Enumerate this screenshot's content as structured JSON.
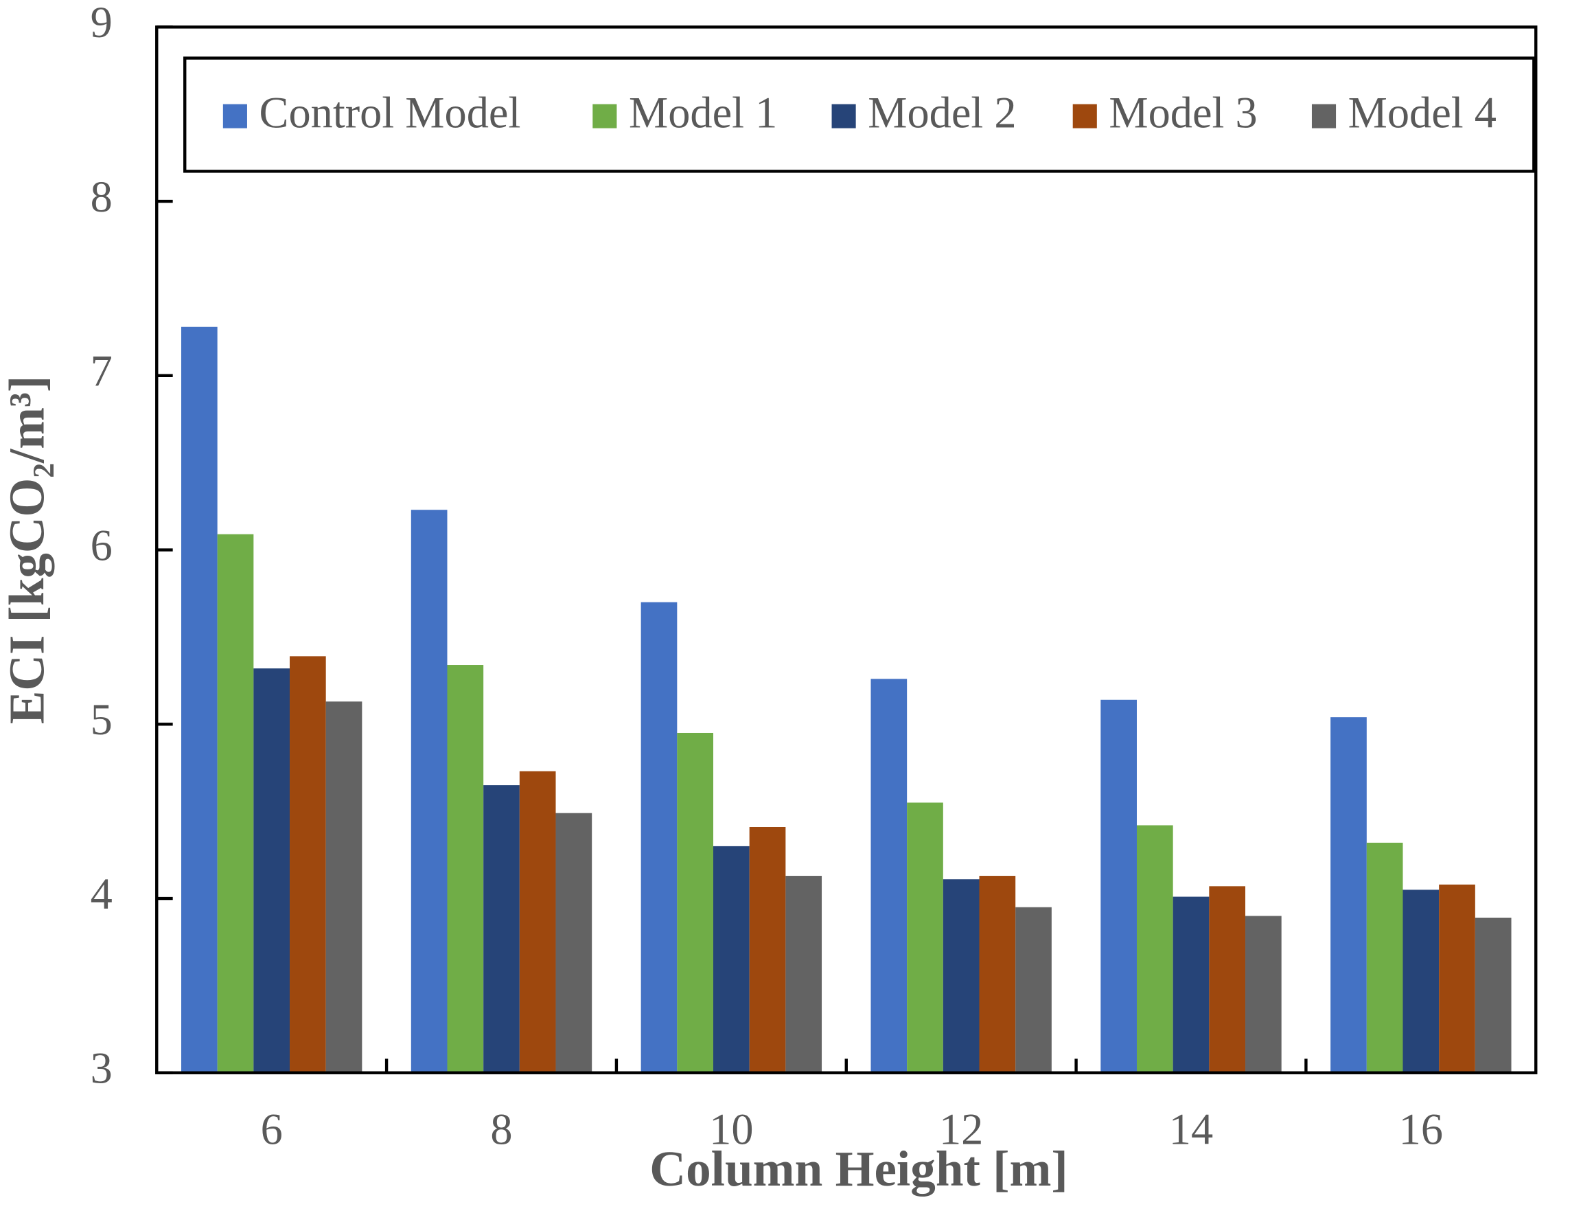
{
  "chart_data": {
    "type": "bar",
    "x_label": "Column Height [m]",
    "y_label": "ECI [kgCO₂/m³]",
    "categories": [
      "6",
      "8",
      "10",
      "12",
      "14",
      "16"
    ],
    "series": [
      {
        "name": "Control Model",
        "color": "#4472c4",
        "values": [
          7.28,
          6.23,
          5.7,
          5.26,
          5.14,
          5.04
        ]
      },
      {
        "name": "Model 1",
        "color": "#70ad47",
        "values": [
          6.09,
          5.34,
          4.95,
          4.55,
          4.42,
          4.32
        ]
      },
      {
        "name": "Model 2",
        "color": "#264478",
        "values": [
          5.32,
          4.65,
          4.3,
          4.11,
          4.01,
          4.05
        ]
      },
      {
        "name": "Model 3",
        "color": "#9e480e",
        "values": [
          5.39,
          4.73,
          4.41,
          4.13,
          4.07,
          4.08
        ]
      },
      {
        "name": "Model 4",
        "color": "#636363",
        "values": [
          5.13,
          4.49,
          4.13,
          3.95,
          3.9,
          3.89
        ]
      }
    ],
    "ylim": [
      3,
      9
    ],
    "yticks": [
      3,
      4,
      5,
      6,
      7,
      8,
      9
    ],
    "legend": "top"
  }
}
